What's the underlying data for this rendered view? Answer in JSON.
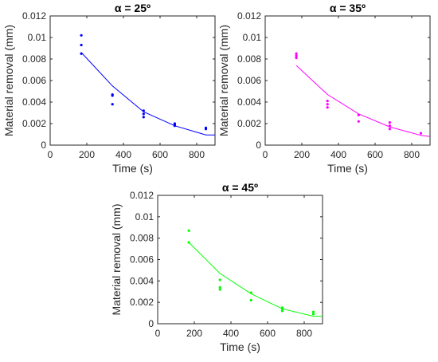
{
  "chart_data": [
    {
      "type": "scatter",
      "title": "α = 25º",
      "xlabel": "Time (s)",
      "ylabel": "Material removal (mm)",
      "xlim": [
        0,
        900
      ],
      "ylim": [
        0,
        0.012
      ],
      "xticks": [
        "0",
        "200",
        "400",
        "600",
        "800"
      ],
      "yticks": [
        "0",
        "0.002",
        "0.004",
        "0.006",
        "0.008",
        "0.01",
        "0.012"
      ],
      "color": "#0000ff",
      "grid": false,
      "series": [
        {
          "kind": "points",
          "x": [
            170,
            170,
            170,
            340,
            340,
            340,
            510,
            510,
            510,
            680,
            680,
            680,
            850,
            850
          ],
          "y": [
            0.0102,
            0.0093,
            0.0085,
            0.0047,
            0.0046,
            0.0038,
            0.0032,
            0.0029,
            0.0026,
            0.002,
            0.0019,
            0.0018,
            0.0016,
            0.0015
          ]
        },
        {
          "kind": "fit",
          "x": [
            170,
            340,
            510,
            680,
            850,
            900
          ],
          "y": [
            0.0086,
            0.0055,
            0.0031,
            0.0018,
            0.00095,
            0.00095
          ]
        }
      ]
    },
    {
      "type": "scatter",
      "title": "α = 35º",
      "xlabel": "Time (s)",
      "ylabel": "Material removal (mm)",
      "xlim": [
        0,
        900
      ],
      "ylim": [
        0,
        0.012
      ],
      "xticks": [
        "0",
        "200",
        "400",
        "600",
        "800"
      ],
      "yticks": [
        "0",
        "0.002",
        "0.004",
        "0.006",
        "0.008",
        "0.01",
        "0.012"
      ],
      "color": "#ff00ff",
      "grid": false,
      "series": [
        {
          "kind": "points",
          "x": [
            170,
            170,
            170,
            340,
            340,
            340,
            510,
            510,
            680,
            680,
            680,
            850
          ],
          "y": [
            0.0085,
            0.0083,
            0.0081,
            0.0041,
            0.0038,
            0.0035,
            0.0028,
            0.0022,
            0.0021,
            0.0018,
            0.0015,
            0.0011
          ]
        },
        {
          "kind": "fit",
          "x": [
            170,
            340,
            510,
            680,
            850,
            900
          ],
          "y": [
            0.0074,
            0.0047,
            0.0029,
            0.0017,
            0.0009,
            0.0008
          ]
        }
      ]
    },
    {
      "type": "scatter",
      "title": "α = 45º",
      "xlabel": "Time (s)",
      "ylabel": "Material removal (mm)",
      "xlim": [
        0,
        900
      ],
      "ylim": [
        0,
        0.012
      ],
      "xticks": [
        "0",
        "200",
        "400",
        "600",
        "800"
      ],
      "yticks": [
        "0",
        "0.002",
        "0.004",
        "0.006",
        "0.008",
        "0.01",
        "0.012"
      ],
      "color": "#00ff00",
      "grid": false,
      "series": [
        {
          "kind": "points",
          "x": [
            170,
            170,
            340,
            340,
            340,
            510,
            510,
            680,
            680,
            680,
            850,
            850
          ],
          "y": [
            0.0087,
            0.0076,
            0.0041,
            0.0034,
            0.0032,
            0.0029,
            0.0022,
            0.0015,
            0.0014,
            0.0012,
            0.0011,
            0.0009
          ]
        },
        {
          "kind": "fit",
          "x": [
            170,
            340,
            510,
            680,
            850,
            900
          ],
          "y": [
            0.0076,
            0.0047,
            0.0028,
            0.0014,
            0.0007,
            0.0007
          ]
        }
      ]
    }
  ]
}
